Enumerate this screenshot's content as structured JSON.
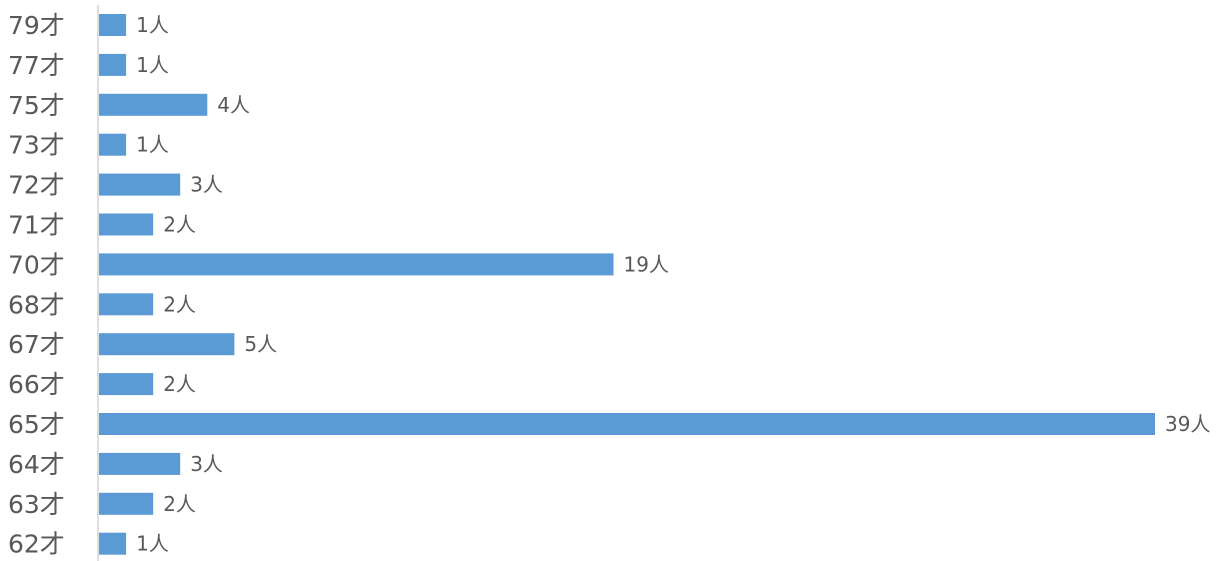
{
  "chart_data": {
    "type": "bar",
    "orientation": "horizontal",
    "categories": [
      "79才",
      "77才",
      "75才",
      "73才",
      "72才",
      "71才",
      "70才",
      "68才",
      "67才",
      "66才",
      "65才",
      "64才",
      "63才",
      "62才"
    ],
    "values": [
      1,
      1,
      4,
      1,
      3,
      2,
      19,
      2,
      5,
      2,
      39,
      3,
      2,
      1
    ],
    "data_labels": [
      "1人",
      "1人",
      "4人",
      "1人",
      "3人",
      "2人",
      "19人",
      "2人",
      "5人",
      "2人",
      "39人",
      "3人",
      "2人",
      "1人"
    ],
    "title": "",
    "xlabel": "",
    "ylabel": "",
    "xlim": [
      0,
      39
    ],
    "grid": false,
    "legend": "none",
    "colors": {
      "bar": "#5b9bd5",
      "axis": "#bfbfbf",
      "text": "#595959"
    }
  }
}
